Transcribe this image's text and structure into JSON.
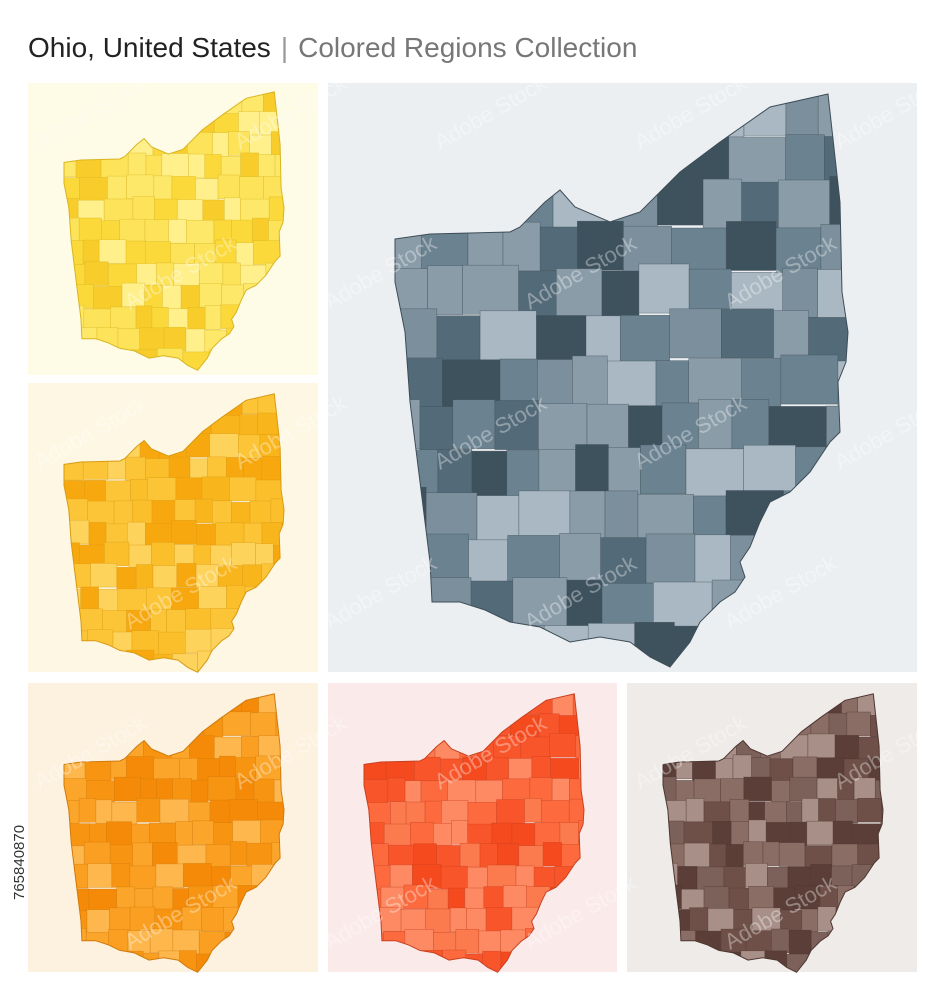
{
  "header": {
    "title": "Ohio, United States",
    "separator": "|",
    "subtitle": "Colored Regions Collection"
  },
  "side_id": "765840870",
  "watermark": "Adobe Stock"
}
